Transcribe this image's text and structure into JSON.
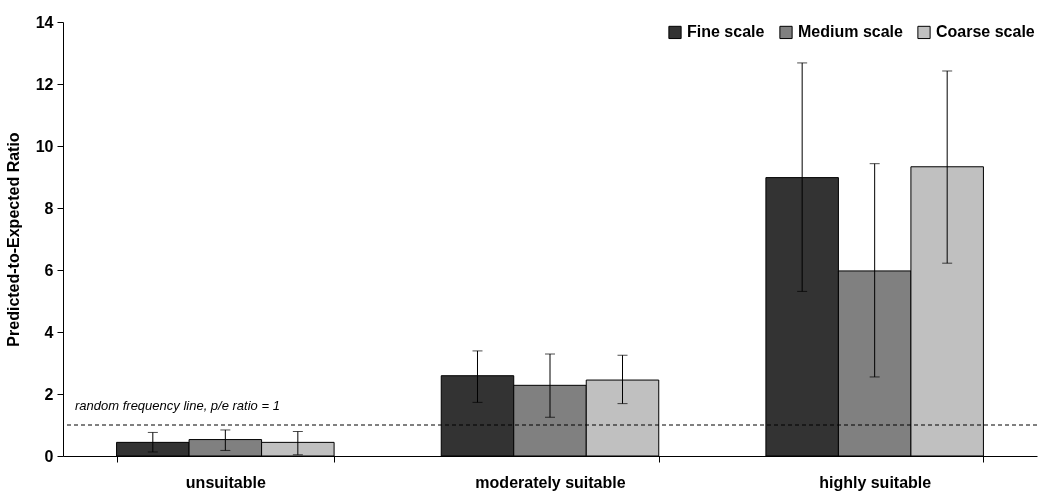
{
  "chart_data": {
    "type": "bar",
    "ylabel": "Predicted-to-Expected Ratio",
    "categories": [
      "unsuitable",
      "moderately suitable",
      "highly suitable"
    ],
    "series": [
      {
        "name": "Fine scale",
        "color": "#333333",
        "values": [
          0.44,
          2.59,
          8.98
        ],
        "errors": [
          [
            0.13,
            0.76
          ],
          [
            1.73,
            3.39
          ],
          [
            5.31,
            12.68
          ]
        ]
      },
      {
        "name": "Medium scale",
        "color": "#808080",
        "values": [
          0.53,
          2.28,
          5.97
        ],
        "errors": [
          [
            0.18,
            0.84
          ],
          [
            1.25,
            3.29
          ],
          [
            2.55,
            9.43
          ]
        ]
      },
      {
        "name": "Coarse scale",
        "color": "#c0c0c0",
        "values": [
          0.44,
          2.45,
          9.33
        ],
        "errors": [
          [
            0.04,
            0.79
          ],
          [
            1.69,
            3.25
          ],
          [
            6.22,
            12.42
          ]
        ]
      }
    ],
    "ylim": [
      0,
      14
    ],
    "yticks": [
      0,
      2,
      4,
      6,
      8,
      10,
      12,
      14
    ],
    "grid": false,
    "legend": "top right",
    "ref_lines": [
      {
        "axis": "y",
        "value": 1,
        "label": "random frequency line, p/e ratio = 1",
        "line_style": "dashed",
        "color": "#000000"
      }
    ]
  }
}
